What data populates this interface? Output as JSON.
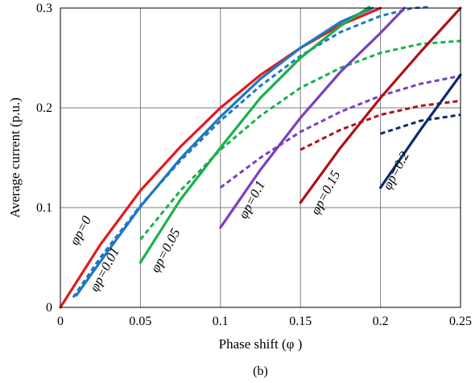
{
  "chart_data": {
    "type": "line",
    "title": "",
    "xlabel": "Phase shift (φ )",
    "ylabel": "Average current (p.u.)",
    "caption": "(b)",
    "xlim": [
      0,
      0.25
    ],
    "ylim": [
      0,
      0.3
    ],
    "x_ticks": [
      "0",
      "0.05",
      "0.1",
      "0.15",
      "0.2",
      "0.25"
    ],
    "y_ticks": [
      "0",
      "0.1",
      "0.2",
      "0.3"
    ],
    "x_tick_values": [
      0,
      0.05,
      0.1,
      0.15,
      0.2,
      0.25
    ],
    "y_tick_values": [
      0,
      0.1,
      0.2,
      0.3
    ],
    "grid": true,
    "series": [
      {
        "group": "0",
        "color": "#e31a1c",
        "dash": false,
        "points": [
          [
            0,
            0
          ],
          [
            0.025,
            0.063
          ],
          [
            0.05,
            0.117
          ],
          [
            0.075,
            0.161
          ],
          [
            0.1,
            0.2
          ],
          [
            0.125,
            0.233
          ],
          [
            0.15,
            0.26
          ],
          [
            0.175,
            0.283
          ],
          [
            0.2,
            0.3
          ]
        ]
      },
      {
        "group": "0.01",
        "color": "#1f77c4",
        "dash": false,
        "points": [
          [
            0.01,
            0.012
          ],
          [
            0.025,
            0.046
          ],
          [
            0.05,
            0.101
          ],
          [
            0.075,
            0.149
          ],
          [
            0.1,
            0.191
          ],
          [
            0.125,
            0.229
          ],
          [
            0.15,
            0.26
          ],
          [
            0.175,
            0.286
          ],
          [
            0.195,
            0.3
          ]
        ]
      },
      {
        "group": "0.01",
        "color": "#1f77c4",
        "dash": true,
        "points": [
          [
            0.008,
            0.01
          ],
          [
            0.025,
            0.05
          ],
          [
            0.05,
            0.102
          ],
          [
            0.075,
            0.147
          ],
          [
            0.1,
            0.187
          ],
          [
            0.125,
            0.222
          ],
          [
            0.15,
            0.252
          ],
          [
            0.175,
            0.276
          ],
          [
            0.2,
            0.292
          ],
          [
            0.22,
            0.3
          ],
          [
            0.23,
            0.301
          ]
        ]
      },
      {
        "group": "0.05",
        "color": "#1ab04c",
        "dash": false,
        "points": [
          [
            0.05,
            0.045
          ],
          [
            0.075,
            0.108
          ],
          [
            0.1,
            0.16
          ],
          [
            0.125,
            0.21
          ],
          [
            0.15,
            0.25
          ],
          [
            0.175,
            0.282
          ],
          [
            0.193,
            0.301
          ]
        ]
      },
      {
        "group": "0.05",
        "color": "#1ab04c",
        "dash": true,
        "points": [
          [
            0.05,
            0.068
          ],
          [
            0.075,
            0.117
          ],
          [
            0.1,
            0.158
          ],
          [
            0.125,
            0.192
          ],
          [
            0.15,
            0.22
          ],
          [
            0.175,
            0.24
          ],
          [
            0.2,
            0.255
          ],
          [
            0.225,
            0.264
          ],
          [
            0.25,
            0.267
          ]
        ]
      },
      {
        "group": "0.1",
        "color": "#7b3fbf",
        "dash": false,
        "points": [
          [
            0.1,
            0.08
          ],
          [
            0.125,
            0.138
          ],
          [
            0.15,
            0.19
          ],
          [
            0.175,
            0.236
          ],
          [
            0.2,
            0.275
          ],
          [
            0.215,
            0.3
          ]
        ]
      },
      {
        "group": "0.1",
        "color": "#7b3fbf",
        "dash": true,
        "points": [
          [
            0.1,
            0.12
          ],
          [
            0.125,
            0.15
          ],
          [
            0.15,
            0.176
          ],
          [
            0.175,
            0.196
          ],
          [
            0.2,
            0.212
          ],
          [
            0.225,
            0.224
          ],
          [
            0.25,
            0.232
          ]
        ]
      },
      {
        "group": "0.15",
        "color": "#b01018",
        "dash": false,
        "points": [
          [
            0.15,
            0.105
          ],
          [
            0.175,
            0.16
          ],
          [
            0.2,
            0.21
          ],
          [
            0.225,
            0.256
          ],
          [
            0.25,
            0.3
          ]
        ]
      },
      {
        "group": "0.15",
        "color": "#b01018",
        "dash": true,
        "points": [
          [
            0.15,
            0.158
          ],
          [
            0.175,
            0.178
          ],
          [
            0.2,
            0.193
          ],
          [
            0.225,
            0.202
          ],
          [
            0.25,
            0.207
          ]
        ]
      },
      {
        "group": "0.2",
        "color": "#0d2a6b",
        "dash": false,
        "points": [
          [
            0.2,
            0.12
          ],
          [
            0.225,
            0.178
          ],
          [
            0.25,
            0.233
          ]
        ]
      },
      {
        "group": "0.2",
        "color": "#0d2a6b",
        "dash": true,
        "points": [
          [
            0.2,
            0.174
          ],
          [
            0.225,
            0.187
          ],
          [
            0.25,
            0.193
          ]
        ]
      }
    ],
    "annotations": [
      {
        "text": "φp=0",
        "x": 0.015,
        "y": 0.075
      },
      {
        "text": "φp=0.01",
        "x": 0.03,
        "y": 0.036
      },
      {
        "text": "φp=0.05",
        "x": 0.068,
        "y": 0.055
      },
      {
        "text": "φp=0.1",
        "x": 0.122,
        "y": 0.106
      },
      {
        "text": "φp=0.15",
        "x": 0.168,
        "y": 0.113
      },
      {
        "text": "φp=0.2",
        "x": 0.212,
        "y": 0.135
      }
    ]
  }
}
